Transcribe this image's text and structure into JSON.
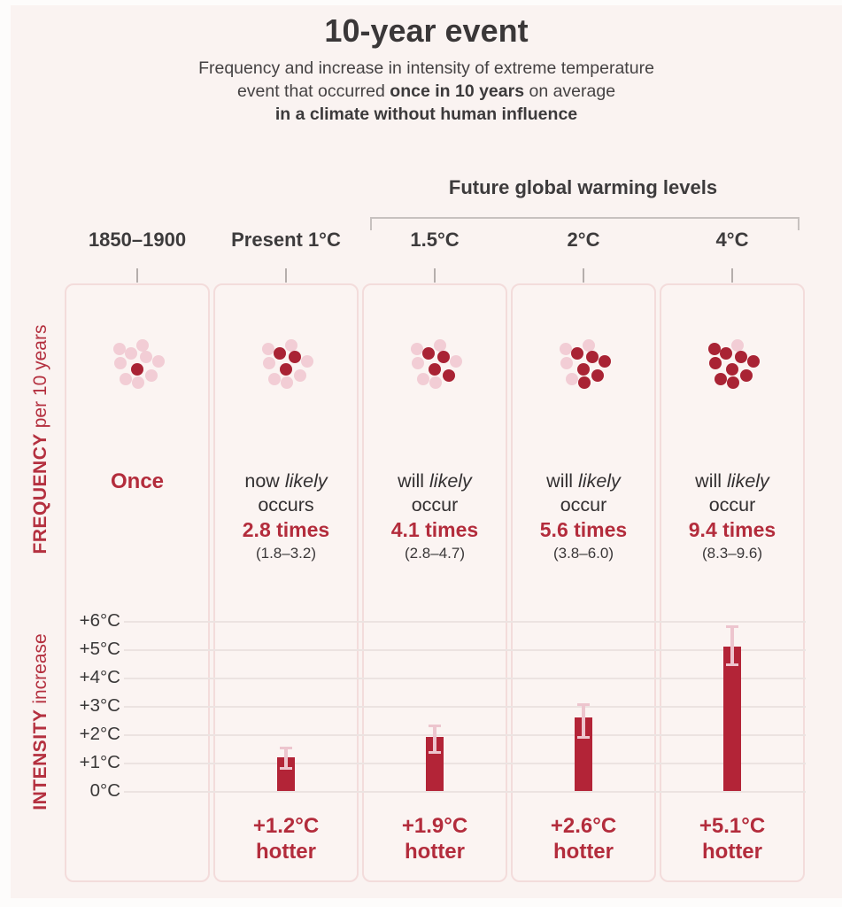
{
  "title": "10-year event",
  "subtitle": {
    "line1": "Frequency and increase in intensity of extreme temperature",
    "line2_pre": "event that occurred ",
    "line2_bold": "once in 10 years",
    "line2_post": " on average",
    "line3": "in a climate without human influence"
  },
  "header": {
    "future_label": "Future global warming levels"
  },
  "side_labels": {
    "frequency_bold": "FREQUENCY",
    "frequency_rest": " per 10 years",
    "intensity_bold": "INTENSITY",
    "intensity_rest": " increase"
  },
  "axis": {
    "ticks": [
      "+6°C",
      "+5°C",
      "+4°C",
      "+3°C",
      "+2°C",
      "+1°C",
      "0°C"
    ]
  },
  "columns": [
    {
      "label": "1850–1900",
      "freq": {
        "once": "Once"
      },
      "dots": {
        "total": 10,
        "dark": 1,
        "dark_indices": [
          5
        ]
      },
      "intensity": null
    },
    {
      "label": "Present 1°C",
      "freq": {
        "pre": "now ",
        "italic": "likely",
        "line2": "occurs",
        "times": "2.8 times",
        "range": "(1.8–3.2)"
      },
      "dots": {
        "total": 10,
        "dark": 3,
        "dark_indices": [
          2,
          3,
          5
        ]
      },
      "intensity": {
        "value": 1.2,
        "low": 0.75,
        "high": 1.55,
        "label": "+1.2°C",
        "hotter": "hotter"
      }
    },
    {
      "label": "1.5°C",
      "freq": {
        "pre": "will ",
        "italic": "likely",
        "line2": "occur",
        "times": "4.1 times",
        "range": "(2.8–4.7)"
      },
      "dots": {
        "total": 10,
        "dark": 4,
        "dark_indices": [
          2,
          3,
          5,
          7
        ]
      },
      "intensity": {
        "value": 1.9,
        "low": 1.3,
        "high": 2.35,
        "label": "+1.9°C",
        "hotter": "hotter"
      }
    },
    {
      "label": "2°C",
      "freq": {
        "pre": "will ",
        "italic": "likely",
        "line2": "occur",
        "times": "5.6 times",
        "range": "(3.8–6.0)"
      },
      "dots": {
        "total": 10,
        "dark": 6,
        "dark_indices": [
          2,
          3,
          5,
          6,
          7,
          9
        ]
      },
      "intensity": {
        "value": 2.6,
        "low": 1.85,
        "high": 3.1,
        "label": "+2.6°C",
        "hotter": "hotter"
      }
    },
    {
      "label": "4°C",
      "freq": {
        "pre": "will ",
        "italic": "likely",
        "line2": "occur",
        "times": "9.4 times",
        "range": "(8.3–9.6)"
      },
      "dots": {
        "total": 10,
        "dark": 9,
        "dark_indices": [
          0,
          2,
          3,
          4,
          5,
          6,
          7,
          8,
          9
        ]
      },
      "intensity": {
        "value": 5.1,
        "low": 4.4,
        "high": 5.85,
        "label": "+5.1°C",
        "hotter": "hotter"
      }
    }
  ],
  "colors": {
    "background": "#faf3f1",
    "panel_border": "#f3dcdb",
    "dark_dot": "#a92334",
    "light_dot": "#f2cdd5",
    "bar": "#b32437",
    "whisker": "#edc5ce",
    "red_text": "#b32c3c",
    "dark_text": "#3a3738",
    "gridline": "#ece3e1"
  },
  "chart_data": {
    "type": "bar",
    "title": "10-year event",
    "subtitle": "Frequency and increase in intensity of extreme temperature event that occurred once in 10 years on average in a climate without human influence",
    "categories": [
      "1850–1900",
      "Present 1°C",
      "1.5°C",
      "2°C",
      "4°C"
    ],
    "series": [
      {
        "name": "Frequency per 10 years",
        "unit": "times",
        "values": [
          1,
          2.8,
          4.1,
          5.6,
          9.4
        ],
        "likely_ranges": [
          null,
          [
            1.8,
            3.2
          ],
          [
            2.8,
            4.7
          ],
          [
            3.8,
            6.0
          ],
          [
            8.3,
            9.6
          ]
        ],
        "labels": [
          "Once",
          "now likely occurs 2.8 times",
          "will likely occur 4.1 times",
          "will likely occur 5.6 times",
          "will likely occur 9.4 times"
        ]
      },
      {
        "name": "Intensity increase",
        "unit": "°C",
        "values": [
          0,
          1.2,
          1.9,
          2.6,
          5.1
        ],
        "error_ranges_est": [
          null,
          [
            0.75,
            1.55
          ],
          [
            1.3,
            2.35
          ],
          [
            1.85,
            3.1
          ],
          [
            4.4,
            5.85
          ]
        ],
        "labels": [
          "",
          "+1.2°C hotter",
          "+1.9°C hotter",
          "+2.6°C hotter",
          "+5.1°C hotter"
        ]
      }
    ],
    "group_header": {
      "text": "Future global warming levels",
      "applies_to": [
        "1.5°C",
        "2°C",
        "4°C"
      ]
    },
    "ylabel": "Intensity increase (°C)",
    "ylim": [
      0,
      6
    ],
    "ytick_step": 1,
    "grid": true,
    "legend_position": "none"
  }
}
